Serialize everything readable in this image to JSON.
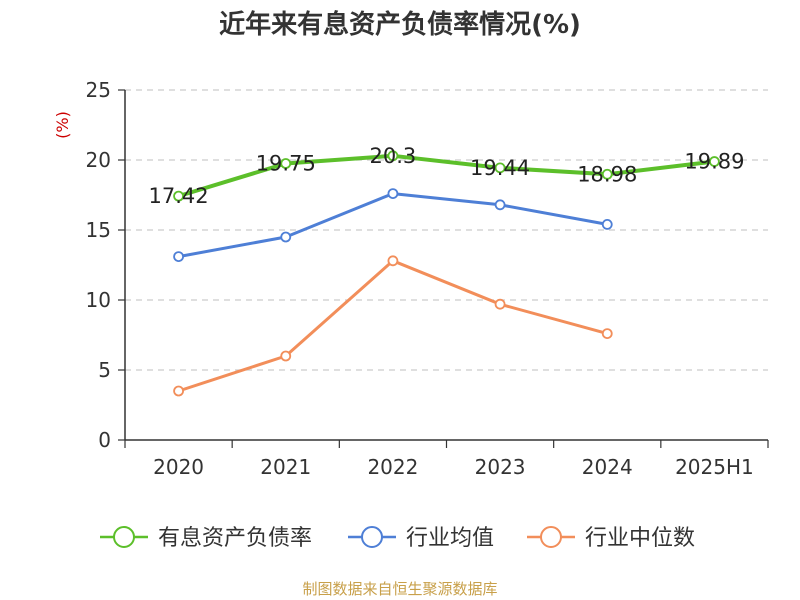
{
  "chart_data": {
    "type": "line",
    "title": "近年来有息资产负债率情况(%)",
    "ylabel": "(%)",
    "categories": [
      "2020",
      "2021",
      "2022",
      "2023",
      "2024",
      "2025H1"
    ],
    "ylim": [
      0,
      25
    ],
    "yticks": [
      0,
      5,
      10,
      15,
      20,
      25
    ],
    "grid": true,
    "legend_position": "bottom",
    "series": [
      {
        "name": "有息资产负债率",
        "color": "#5cbf2a",
        "show_labels": true,
        "values": [
          17.42,
          19.75,
          20.3,
          19.44,
          18.98,
          19.89
        ]
      },
      {
        "name": "行业均值",
        "color": "#4e7fd6",
        "show_labels": false,
        "values": [
          13.1,
          14.5,
          17.6,
          16.8,
          15.4,
          null
        ]
      },
      {
        "name": "行业中位数",
        "color": "#f28e5a",
        "show_labels": false,
        "values": [
          3.5,
          6.0,
          12.8,
          9.7,
          7.6,
          null
        ]
      }
    ],
    "source": "制图数据来自恒生聚源数据库"
  },
  "colors": {
    "axis": "#333333",
    "grid": "#cccccc",
    "ylabel": "#cc0000",
    "source": "#c8a04a"
  }
}
